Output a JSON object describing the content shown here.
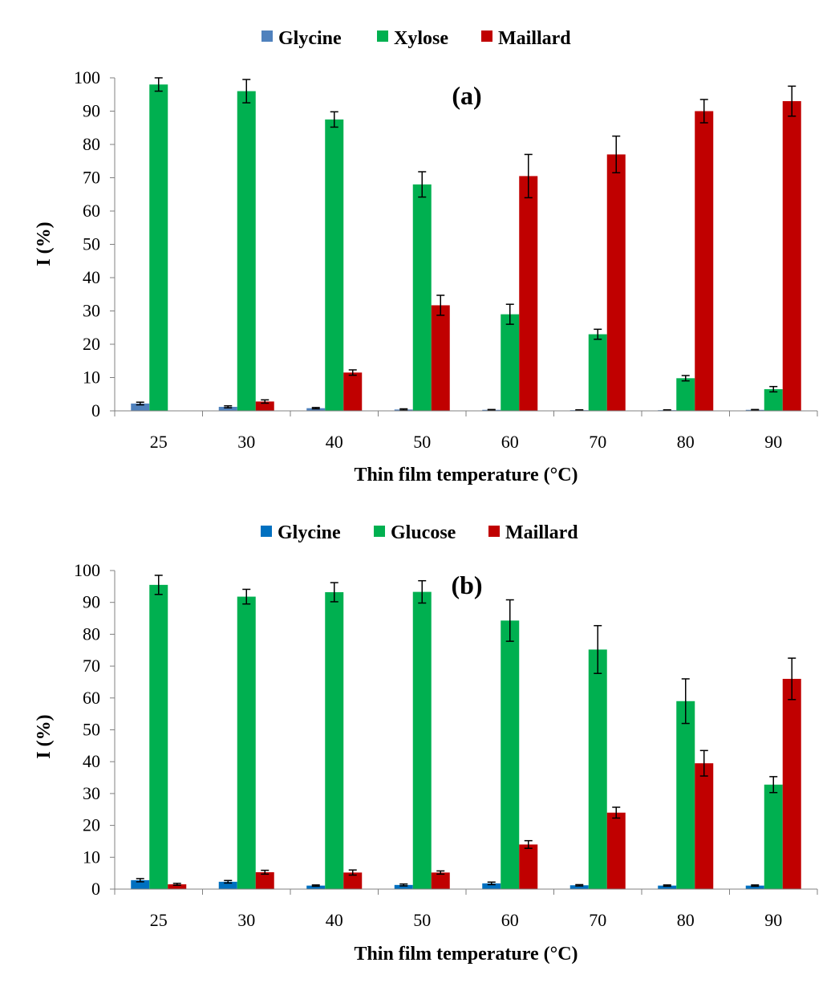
{
  "chart_data": [
    {
      "type": "bar",
      "panel_label": "(a)",
      "xlabel": "Thin film temperature (°C)",
      "ylabel": "I (%)",
      "ylim": [
        0,
        100
      ],
      "yticks": [
        0,
        10,
        20,
        30,
        40,
        50,
        60,
        70,
        80,
        90,
        100
      ],
      "categories": [
        "25",
        "30",
        "40",
        "50",
        "60",
        "70",
        "80",
        "90"
      ],
      "legend_position": "top-center",
      "grid": false,
      "series": [
        {
          "name": "Glycine",
          "color": "#4f81bd",
          "values": [
            2.2,
            1.2,
            0.8,
            0.4,
            0.3,
            0.2,
            0.2,
            0.3
          ],
          "errors": [
            0.4,
            0.3,
            0.2,
            0.2,
            0.1,
            0.1,
            0.1,
            0.1
          ]
        },
        {
          "name": "Xylose",
          "color": "#00b050",
          "values": [
            98,
            96,
            87.5,
            68,
            29,
            23,
            9.8,
            6.5
          ],
          "errors": [
            2,
            3.5,
            2.3,
            3.8,
            3,
            1.5,
            0.8,
            0.8
          ]
        },
        {
          "name": "Maillard",
          "color": "#c00000",
          "values": [
            0,
            2.8,
            11.5,
            31.7,
            70.5,
            77,
            90,
            93
          ],
          "errors": [
            0,
            0.5,
            0.8,
            3,
            6.5,
            5.5,
            3.5,
            4.5
          ]
        }
      ]
    },
    {
      "type": "bar",
      "panel_label": "(b)",
      "xlabel": "Thin film temperature (°C)",
      "ylabel": "I (%)",
      "ylim": [
        0,
        100
      ],
      "yticks": [
        0,
        10,
        20,
        30,
        40,
        50,
        60,
        70,
        80,
        90,
        100
      ],
      "categories": [
        "25",
        "30",
        "40",
        "50",
        "60",
        "70",
        "80",
        "90"
      ],
      "legend_position": "top-center",
      "grid": false,
      "series": [
        {
          "name": "Glycine",
          "color": "#0070c0",
          "values": [
            2.8,
            2.3,
            1.1,
            1.3,
            1.8,
            1.2,
            1.1,
            1.1
          ],
          "errors": [
            0.5,
            0.4,
            0.2,
            0.3,
            0.4,
            0.2,
            0.2,
            0.2
          ]
        },
        {
          "name": "Glucose",
          "color": "#00b050",
          "values": [
            95.5,
            91.8,
            93.2,
            93.3,
            84.3,
            75.2,
            59,
            32.8
          ],
          "errors": [
            3,
            2.3,
            3,
            3.5,
            6.5,
            7.5,
            7,
            2.5
          ]
        },
        {
          "name": "Maillard",
          "color": "#c00000",
          "values": [
            1.5,
            5.3,
            5.2,
            5.2,
            14,
            24,
            39.5,
            66
          ],
          "errors": [
            0.3,
            0.6,
            0.8,
            0.5,
            1.2,
            1.7,
            4,
            6.5
          ]
        }
      ]
    }
  ]
}
